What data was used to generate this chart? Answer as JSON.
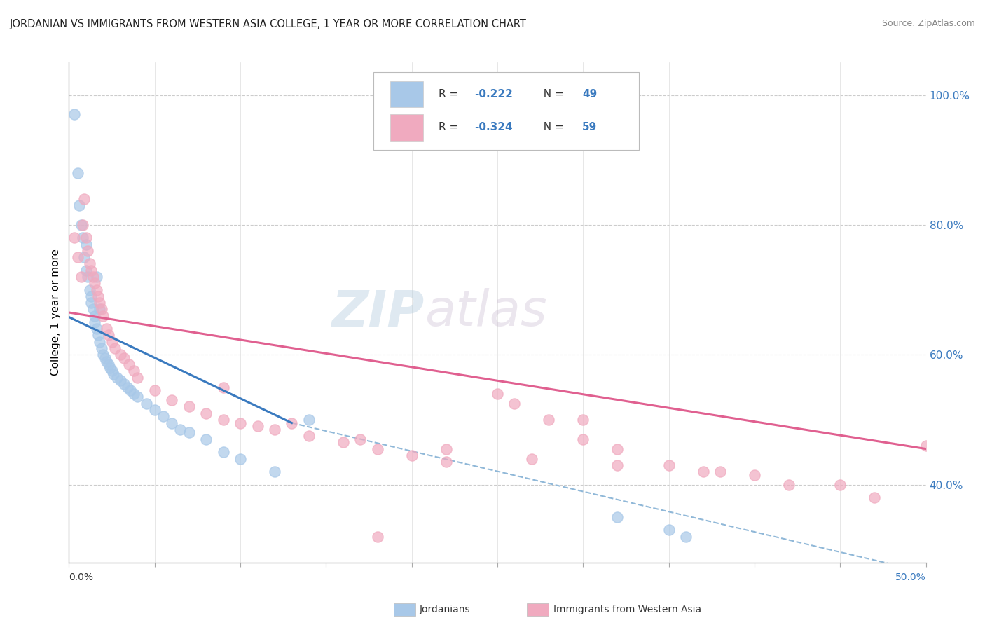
{
  "title": "JORDANIAN VS IMMIGRANTS FROM WESTERN ASIA COLLEGE, 1 YEAR OR MORE CORRELATION CHART",
  "source": "Source: ZipAtlas.com",
  "ylabel": "College, 1 year or more",
  "watermark_zip": "ZIP",
  "watermark_atlas": "atlas",
  "legend_blue_r": "-0.222",
  "legend_blue_n": "49",
  "legend_pink_r": "-0.324",
  "legend_pink_n": "59",
  "blue_color": "#a8c8e8",
  "pink_color": "#f0aabf",
  "blue_line_color": "#3a7abf",
  "pink_line_color": "#e06090",
  "dashed_line_color": "#90b8d8",
  "text_blue": "#3a7abf",
  "xmin": 0.0,
  "xmax": 0.5,
  "ymin": 0.28,
  "ymax": 1.05,
  "blue_scatter_x": [
    0.003,
    0.005,
    0.006,
    0.007,
    0.008,
    0.009,
    0.01,
    0.01,
    0.011,
    0.012,
    0.013,
    0.013,
    0.014,
    0.015,
    0.015,
    0.016,
    0.016,
    0.017,
    0.018,
    0.018,
    0.019,
    0.02,
    0.021,
    0.022,
    0.023,
    0.024,
    0.025,
    0.026,
    0.028,
    0.03,
    0.032,
    0.034,
    0.036,
    0.038,
    0.04,
    0.045,
    0.05,
    0.055,
    0.06,
    0.065,
    0.07,
    0.08,
    0.09,
    0.1,
    0.12,
    0.14,
    0.32,
    0.35,
    0.36
  ],
  "blue_scatter_y": [
    0.97,
    0.88,
    0.83,
    0.8,
    0.78,
    0.75,
    0.73,
    0.77,
    0.72,
    0.7,
    0.69,
    0.68,
    0.67,
    0.66,
    0.65,
    0.64,
    0.72,
    0.63,
    0.62,
    0.67,
    0.61,
    0.6,
    0.595,
    0.59,
    0.585,
    0.58,
    0.575,
    0.57,
    0.565,
    0.56,
    0.555,
    0.55,
    0.545,
    0.54,
    0.535,
    0.525,
    0.515,
    0.505,
    0.495,
    0.485,
    0.48,
    0.47,
    0.45,
    0.44,
    0.42,
    0.5,
    0.35,
    0.33,
    0.32
  ],
  "pink_scatter_x": [
    0.003,
    0.005,
    0.007,
    0.008,
    0.009,
    0.01,
    0.011,
    0.012,
    0.013,
    0.014,
    0.015,
    0.016,
    0.017,
    0.018,
    0.019,
    0.02,
    0.022,
    0.023,
    0.025,
    0.027,
    0.03,
    0.032,
    0.035,
    0.038,
    0.04,
    0.05,
    0.06,
    0.07,
    0.08,
    0.09,
    0.1,
    0.11,
    0.12,
    0.14,
    0.16,
    0.18,
    0.2,
    0.22,
    0.25,
    0.28,
    0.3,
    0.32,
    0.35,
    0.38,
    0.4,
    0.45,
    0.09,
    0.13,
    0.17,
    0.22,
    0.27,
    0.32,
    0.37,
    0.42,
    0.47,
    0.26,
    0.3,
    0.5,
    0.18
  ],
  "pink_scatter_y": [
    0.78,
    0.75,
    0.72,
    0.8,
    0.84,
    0.78,
    0.76,
    0.74,
    0.73,
    0.72,
    0.71,
    0.7,
    0.69,
    0.68,
    0.67,
    0.66,
    0.64,
    0.63,
    0.62,
    0.61,
    0.6,
    0.595,
    0.585,
    0.575,
    0.565,
    0.545,
    0.53,
    0.52,
    0.51,
    0.5,
    0.495,
    0.49,
    0.485,
    0.475,
    0.465,
    0.455,
    0.445,
    0.435,
    0.54,
    0.5,
    0.47,
    0.455,
    0.43,
    0.42,
    0.415,
    0.4,
    0.55,
    0.495,
    0.47,
    0.455,
    0.44,
    0.43,
    0.42,
    0.4,
    0.38,
    0.525,
    0.5,
    0.46,
    0.32
  ],
  "blue_trendline_x": [
    0.0,
    0.13
  ],
  "blue_trendline_y": [
    0.658,
    0.495
  ],
  "pink_trendline_x": [
    0.0,
    0.5
  ],
  "pink_trendline_y": [
    0.665,
    0.455
  ],
  "dashed_line_x": [
    0.13,
    0.5
  ],
  "dashed_line_y": [
    0.495,
    0.265
  ],
  "figsize": [
    14.06,
    8.92
  ],
  "dpi": 100
}
